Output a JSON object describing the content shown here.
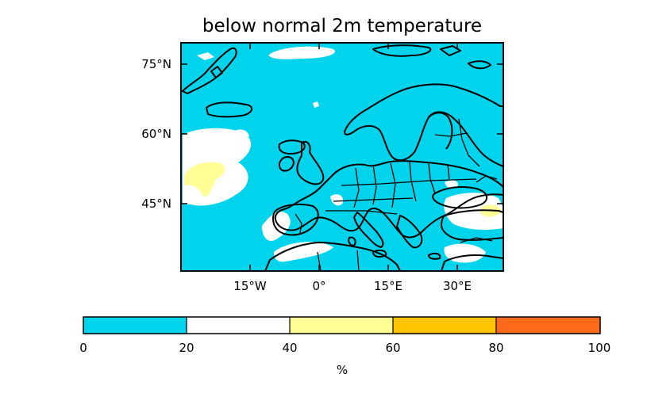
{
  "map": {
    "title": "below normal 2m temperature",
    "lat_ticks": [
      "75°N",
      "60°N",
      "45°N"
    ],
    "lon_ticks": [
      "15°W",
      "0°",
      "15°E",
      "30°E"
    ]
  },
  "colorbar": {
    "ticks": [
      "0",
      "20",
      "40",
      "60",
      "80",
      "100"
    ],
    "unit": "%",
    "colors": [
      "#00d4ec",
      "#ffffff",
      "#ffff96",
      "#ffc400",
      "#ff6a1a"
    ]
  },
  "colors": {
    "below_20": "#00d4ec",
    "20_40": "#ffffff",
    "40_60": "#ffff96",
    "coast": "#000000"
  }
}
